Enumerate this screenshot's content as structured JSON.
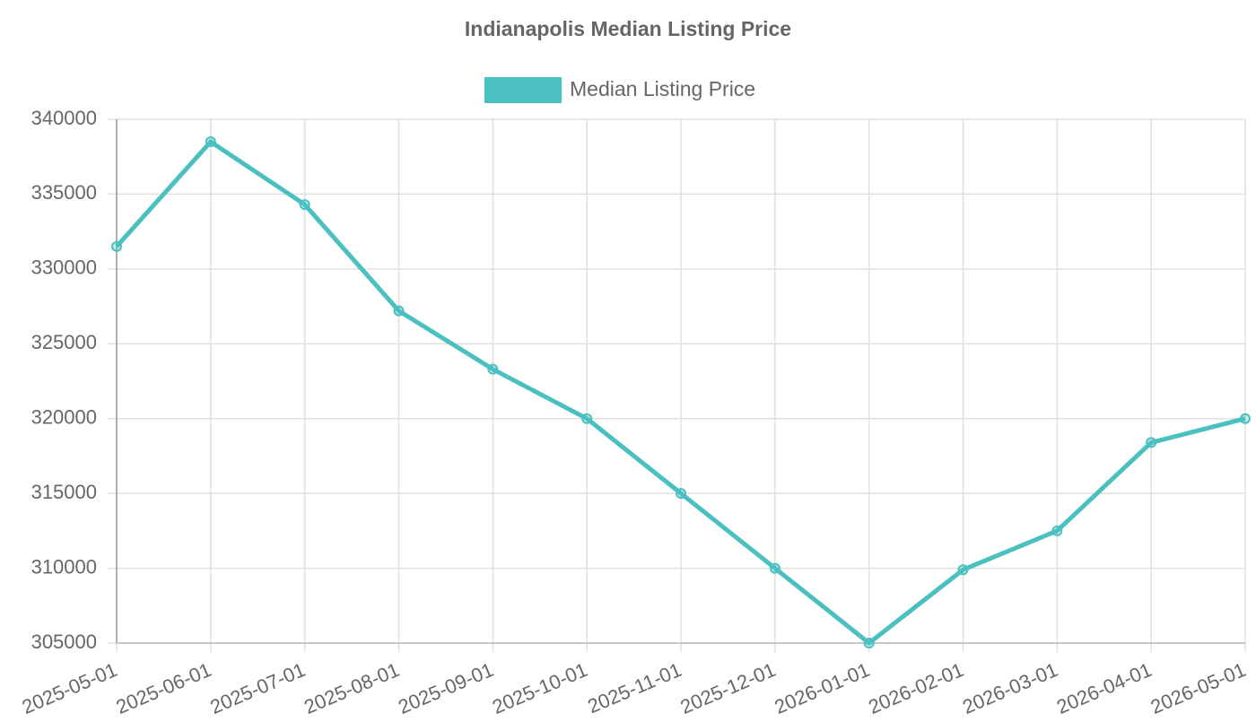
{
  "chart_data": {
    "type": "line",
    "title": "Indianapolis Median Listing Price",
    "categories": [
      "2025-05-01",
      "2025-06-01",
      "2025-07-01",
      "2025-08-01",
      "2025-09-01",
      "2025-10-01",
      "2025-11-01",
      "2025-12-01",
      "2026-01-01",
      "2026-02-01",
      "2026-03-01",
      "2026-04-01",
      "2026-05-01"
    ],
    "series": [
      {
        "name": "Median Listing Price",
        "color": "#4bc0c0",
        "values": [
          331500,
          338500,
          334300,
          327200,
          323300,
          320000,
          315000,
          310000,
          305000,
          309900,
          312500,
          318400,
          320000
        ]
      }
    ],
    "ylim": [
      305000,
      340000
    ],
    "yticks": [
      305000,
      310000,
      315000,
      320000,
      325000,
      330000,
      335000,
      340000
    ],
    "grid": true,
    "legend": "top"
  }
}
